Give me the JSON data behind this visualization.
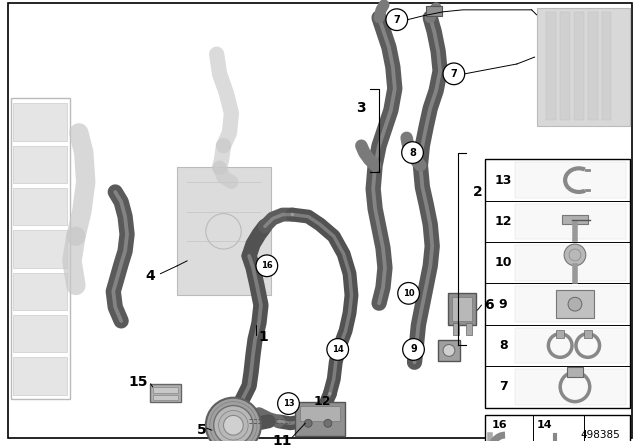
{
  "bg_color": "#ffffff",
  "part_number": "498385",
  "hose_color": "#6a6a6a",
  "hose_dark": "#4a4a4a",
  "hose_light": "#8a8a8a",
  "ghost_color": "#c8c8c8",
  "ghost_dark": "#b0b0b0"
}
